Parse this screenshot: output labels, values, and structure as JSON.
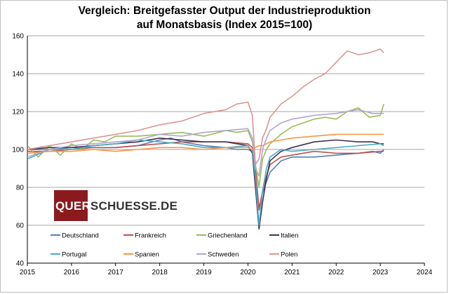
{
  "chart_data": {
    "type": "line",
    "title": "Vergleich: Breitgefasster Output der Industrieproduktion",
    "subtitle": "auf Monatsbasis (Index 2015=100)",
    "xlabel": "",
    "ylabel": "",
    "x_ticks": [
      "2015",
      "2016",
      "2017",
      "2018",
      "2019",
      "2020",
      "2021",
      "2022",
      "2023",
      "2024"
    ],
    "y_ticks": [
      "40",
      "60",
      "80",
      "100",
      "120",
      "140",
      "160"
    ],
    "xlim": [
      2015,
      2024
    ],
    "ylim": [
      40,
      160
    ],
    "grid": "horizontal",
    "legend_position": "bottom-inside",
    "watermark": {
      "part1": "QUER",
      "part2": "SCHUESSE.DE"
    },
    "series": [
      {
        "name": "Deutschland",
        "color": "#4f81bd",
        "x": [
          2015.0,
          2015.5,
          2016.0,
          2016.5,
          2017.0,
          2017.5,
          2018.0,
          2018.25,
          2018.5,
          2018.75,
          2019.0,
          2019.5,
          2019.75,
          2020.0,
          2020.1,
          2020.17,
          2020.25,
          2020.33,
          2020.42,
          2020.5,
          2020.75,
          2021.0,
          2021.5,
          2022.0,
          2022.5,
          2022.83,
          2023.0,
          2023.08
        ],
        "y": [
          100,
          100,
          101,
          101,
          101,
          102,
          105,
          106,
          104,
          103,
          102,
          101,
          100,
          100,
          99,
          88,
          69,
          77,
          83,
          88,
          94,
          96,
          96,
          97,
          98,
          99,
          98,
          100
        ]
      },
      {
        "name": "Frankreich",
        "color": "#c0504d",
        "x": [
          2015.0,
          2015.5,
          2016.0,
          2016.5,
          2017.0,
          2017.5,
          2018.0,
          2018.5,
          2019.0,
          2019.5,
          2020.0,
          2020.1,
          2020.17,
          2020.25,
          2020.33,
          2020.42,
          2020.5,
          2020.75,
          2021.0,
          2021.5,
          2022.0,
          2022.5,
          2023.0,
          2023.08
        ],
        "y": [
          99,
          99,
          100,
          101,
          101,
          102,
          103,
          104,
          104,
          104,
          103,
          101,
          90,
          68,
          78,
          86,
          92,
          96,
          97,
          99,
          98,
          98,
          99,
          99
        ]
      },
      {
        "name": "Griechenland",
        "color": "#9bbb59",
        "x": [
          2015.0,
          2015.25,
          2015.5,
          2015.75,
          2016.0,
          2016.25,
          2016.5,
          2016.75,
          2017.0,
          2017.5,
          2018.0,
          2018.5,
          2019.0,
          2019.5,
          2019.75,
          2020.0,
          2020.1,
          2020.17,
          2020.25,
          2020.33,
          2020.42,
          2020.5,
          2020.75,
          2021.0,
          2021.25,
          2021.5,
          2021.75,
          2022.0,
          2022.25,
          2022.5,
          2022.75,
          2023.0,
          2023.08
        ],
        "y": [
          102,
          96,
          102,
          97,
          103,
          100,
          105,
          104,
          107,
          107,
          108,
          109,
          107,
          110,
          109,
          110,
          104,
          92,
          80,
          95,
          100,
          103,
          108,
          112,
          114,
          116,
          117,
          116,
          120,
          122,
          117,
          118,
          124
        ]
      },
      {
        "name": "Italien",
        "color": "#403152",
        "x": [
          2015.0,
          2015.5,
          2016.0,
          2016.5,
          2017.0,
          2017.5,
          2018.0,
          2018.5,
          2019.0,
          2019.5,
          2020.0,
          2020.1,
          2020.17,
          2020.25,
          2020.33,
          2020.42,
          2020.5,
          2020.75,
          2021.0,
          2021.5,
          2022.0,
          2022.5,
          2022.83,
          2023.0,
          2023.08
        ],
        "y": [
          100,
          101,
          101,
          102,
          103,
          104,
          106,
          105,
          104,
          104,
          102,
          98,
          80,
          58,
          72,
          85,
          94,
          99,
          101,
          104,
          105,
          104,
          104,
          103,
          103
        ]
      },
      {
        "name": "Portugal",
        "color": "#4bacc6",
        "x": [
          2015.0,
          2015.5,
          2016.0,
          2016.5,
          2017.0,
          2017.5,
          2018.0,
          2018.5,
          2019.0,
          2019.5,
          2020.0,
          2020.1,
          2020.17,
          2020.25,
          2020.33,
          2020.42,
          2020.5,
          2020.75,
          2021.0,
          2021.5,
          2022.0,
          2022.5,
          2023.0,
          2023.08
        ],
        "y": [
          95,
          100,
          100,
          102,
          103,
          105,
          104,
          103,
          101,
          101,
          102,
          99,
          85,
          60,
          78,
          90,
          96,
          100,
          99,
          100,
          101,
          102,
          103,
          102
        ]
      },
      {
        "name": "Spanien",
        "color": "#f79646",
        "x": [
          2015.0,
          2015.5,
          2016.0,
          2016.5,
          2017.0,
          2017.5,
          2018.0,
          2018.5,
          2019.0,
          2019.5,
          2020.0,
          2020.1,
          2020.17,
          2020.25,
          2020.33,
          2020.42,
          2020.5,
          2020.75,
          2021.0,
          2021.5,
          2022.0,
          2022.5,
          2023.0,
          2023.08
        ],
        "y": [
          98,
          99,
          99,
          100,
          99,
          100,
          101,
          101,
          100,
          101,
          101,
          100,
          101,
          102,
          102,
          103,
          104,
          105,
          106,
          107,
          108,
          108,
          108,
          108
        ]
      },
      {
        "name": "Schweden",
        "color": "#b2a6c8",
        "x": [
          2015.0,
          2015.5,
          2016.0,
          2016.5,
          2017.0,
          2017.5,
          2018.0,
          2018.5,
          2019.0,
          2019.5,
          2020.0,
          2020.1,
          2020.17,
          2020.25,
          2020.33,
          2020.42,
          2020.5,
          2020.75,
          2021.0,
          2021.5,
          2022.0,
          2022.5,
          2022.83,
          2023.0,
          2023.08
        ],
        "y": [
          96,
          100,
          102,
          103,
          104,
          105,
          108,
          107,
          109,
          110,
          111,
          106,
          90,
          86,
          100,
          106,
          110,
          114,
          116,
          118,
          119,
          121,
          119,
          119,
          119
        ]
      },
      {
        "name": "Polen",
        "color": "#d99694",
        "x": [
          2015.0,
          2015.5,
          2016.0,
          2016.5,
          2017.0,
          2017.5,
          2018.0,
          2018.5,
          2019.0,
          2019.5,
          2019.75,
          2020.0,
          2020.1,
          2020.17,
          2020.25,
          2020.33,
          2020.42,
          2020.5,
          2020.75,
          2021.0,
          2021.25,
          2021.5,
          2021.75,
          2022.0,
          2022.25,
          2022.5,
          2022.75,
          2023.0,
          2023.08
        ],
        "y": [
          100,
          102,
          104,
          106,
          108,
          110,
          113,
          115,
          119,
          121,
          124,
          125,
          118,
          92,
          95,
          106,
          111,
          117,
          124,
          128,
          133,
          137,
          140,
          146,
          152,
          150,
          151,
          153,
          151
        ]
      }
    ]
  }
}
